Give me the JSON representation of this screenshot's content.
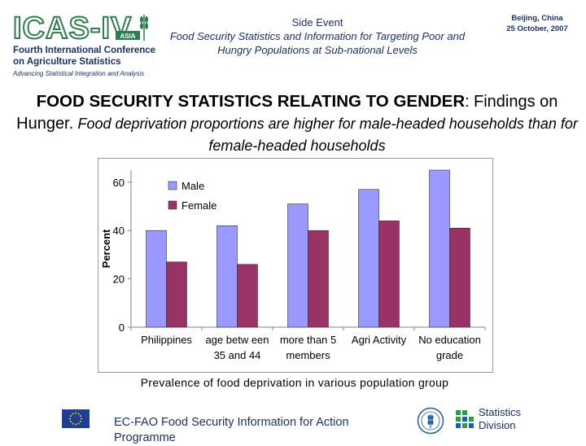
{
  "header": {
    "logo_text": "ICAS-IV",
    "logo_badge": "ASIA",
    "conference_line1": "Fourth International Conference",
    "conference_line2": "on Agriculture Statistics",
    "tagline": "Advancing Statistical Integration and Analysis",
    "side_event": "Side Event",
    "side_event_title": "Food Security Statistics and Information for Targeting Poor and Hungry Populations at Sub-national Levels",
    "location": "Beijing, China",
    "date": "25 October, 2007"
  },
  "headline": {
    "bold": "FOOD SECURITY STATISTICS RELATING TO GENDER",
    "colon": ":",
    "regular": "Findings on Hunger.",
    "italic": "Food deprivation proportions are higher for male-headed households than for female-headed households"
  },
  "colors": {
    "male": "#9999ff",
    "female": "#993366",
    "navy": "#1b2f6b"
  },
  "chart_data": {
    "type": "bar",
    "categories": [
      "Philippines",
      "age between 35 and 44",
      "more than 5 members",
      "Agri Activity",
      "No education grade"
    ],
    "category_lines": [
      [
        "Philippines"
      ],
      [
        "age betw een",
        "35 and 44"
      ],
      [
        "more than 5",
        "members"
      ],
      [
        "Agri Activity"
      ],
      [
        "No education",
        "grade"
      ]
    ],
    "series": [
      {
        "name": "Male",
        "values": [
          40,
          42,
          51,
          57,
          65
        ]
      },
      {
        "name": "Female",
        "values": [
          27,
          26,
          40,
          44,
          41
        ]
      }
    ],
    "ylabel": "Percent",
    "ylim": [
      0,
      65
    ],
    "yticks": [
      0,
      20,
      40,
      60
    ],
    "legend_position": "top-left",
    "grid": false
  },
  "caption": "Prevalence of food deprivation in various population group",
  "footer": {
    "programme": "EC-FAO Food Security Information for Action Programme",
    "stats_line1": "Statistics",
    "stats_line2": "Division",
    "eu_flag_icon": "eu-flag-icon",
    "fao_icon": "fao-logo-icon"
  }
}
